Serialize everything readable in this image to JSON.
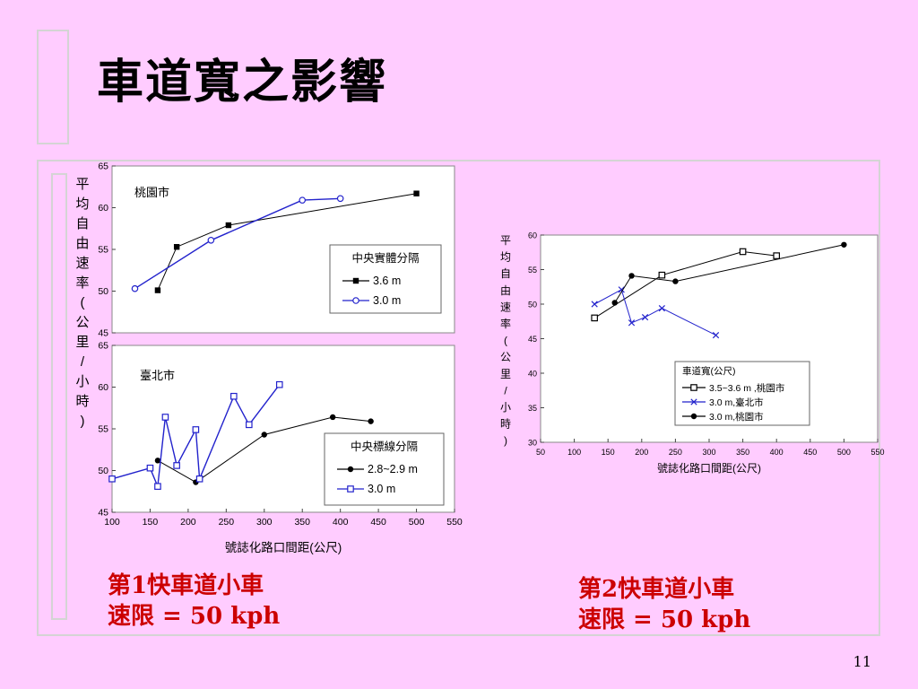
{
  "slide": {
    "title": "車道寬之影響",
    "page_number": "11",
    "captions": [
      {
        "line1": "第1快車道小車",
        "line2": "速限 = 50 kph"
      },
      {
        "line1": "第2快車道小車",
        "line2": "速限 = 50 kph"
      }
    ]
  },
  "colors": {
    "background": "#ffccff",
    "black_series": "#000000",
    "blue_series": "#2222cc"
  },
  "chart_data": [
    {
      "type": "line",
      "panel_label": "桃園市",
      "ylabel": "平 均 自 由 速 率(公里 /小時)",
      "xlabel": "",
      "xlim": [
        100,
        550
      ],
      "ylim": [
        45,
        65
      ],
      "yticks": [
        45,
        50,
        55,
        60,
        65
      ],
      "legend": {
        "title": "中央實體分隔",
        "position": "center-right"
      },
      "series": [
        {
          "name": "3.6 m",
          "color": "#000000",
          "marker": "square-filled",
          "points": [
            [
              160,
              50.1
            ],
            [
              185,
              55.3
            ],
            [
              253,
              57.9
            ],
            [
              500,
              61.7
            ]
          ]
        },
        {
          "name": "3.0 m",
          "color": "#2222cc",
          "marker": "circle-open",
          "points": [
            [
              130,
              50.3
            ],
            [
              230,
              56.1
            ],
            [
              350,
              60.9
            ],
            [
              400,
              61.1
            ]
          ]
        }
      ]
    },
    {
      "type": "line",
      "panel_label": "臺北市",
      "xlabel": "號誌化路口間距(公尺)",
      "xlim": [
        100,
        550
      ],
      "ylim": [
        45,
        65
      ],
      "xticks": [
        100,
        150,
        200,
        250,
        300,
        350,
        400,
        450,
        500,
        550
      ],
      "yticks": [
        45,
        50,
        55,
        60,
        65
      ],
      "legend": {
        "title": "中央標線分隔",
        "position": "bottom-right"
      },
      "series": [
        {
          "name": "2.8~2.9 m",
          "color": "#000000",
          "marker": "circle-filled",
          "points": [
            [
              160,
              51.2
            ],
            [
              210,
              48.6
            ],
            [
              300,
              54.3
            ],
            [
              390,
              56.4
            ],
            [
              440,
              55.9
            ]
          ]
        },
        {
          "name": "3.0 m",
          "color": "#2222cc",
          "marker": "square-open",
          "points": [
            [
              100,
              49.0
            ],
            [
              150,
              50.3
            ],
            [
              160,
              48.1
            ],
            [
              170,
              56.4
            ],
            [
              185,
              50.6
            ],
            [
              210,
              54.9
            ],
            [
              215,
              49.0
            ],
            [
              260,
              58.9
            ],
            [
              280,
              55.5
            ],
            [
              320,
              60.3
            ]
          ]
        }
      ]
    },
    {
      "type": "line",
      "ylabel": "平 均 自 由 速 率(公里 /小時)",
      "xlabel": "號誌化路口間距(公尺)",
      "xlim": [
        50,
        550
      ],
      "ylim": [
        30,
        60
      ],
      "xticks": [
        50,
        100,
        150,
        200,
        250,
        300,
        350,
        400,
        450,
        500,
        550
      ],
      "yticks": [
        30,
        35,
        40,
        45,
        50,
        55,
        60
      ],
      "legend": {
        "title": "車道寬(公尺)",
        "position": "bottom-right"
      },
      "series": [
        {
          "name": "3.5~3.6 m ,桃園市",
          "color": "#000000",
          "marker": "square-open",
          "points": [
            [
              130,
              48.0
            ],
            [
              230,
              54.2
            ],
            [
              350,
              57.6
            ],
            [
              400,
              57.0
            ]
          ]
        },
        {
          "name": "3.0 m,臺北市",
          "color": "#2222cc",
          "marker": "x",
          "points": [
            [
              130,
              50.0
            ],
            [
              170,
              52.1
            ],
            [
              185,
              47.3
            ],
            [
              205,
              48.1
            ],
            [
              230,
              49.4
            ],
            [
              310,
              45.5
            ]
          ]
        },
        {
          "name": "3.0 m,桃園市",
          "color": "#000000",
          "marker": "circle-filled",
          "points": [
            [
              160,
              50.2
            ],
            [
              185,
              54.1
            ],
            [
              250,
              53.3
            ],
            [
              500,
              58.6
            ]
          ]
        }
      ]
    }
  ]
}
